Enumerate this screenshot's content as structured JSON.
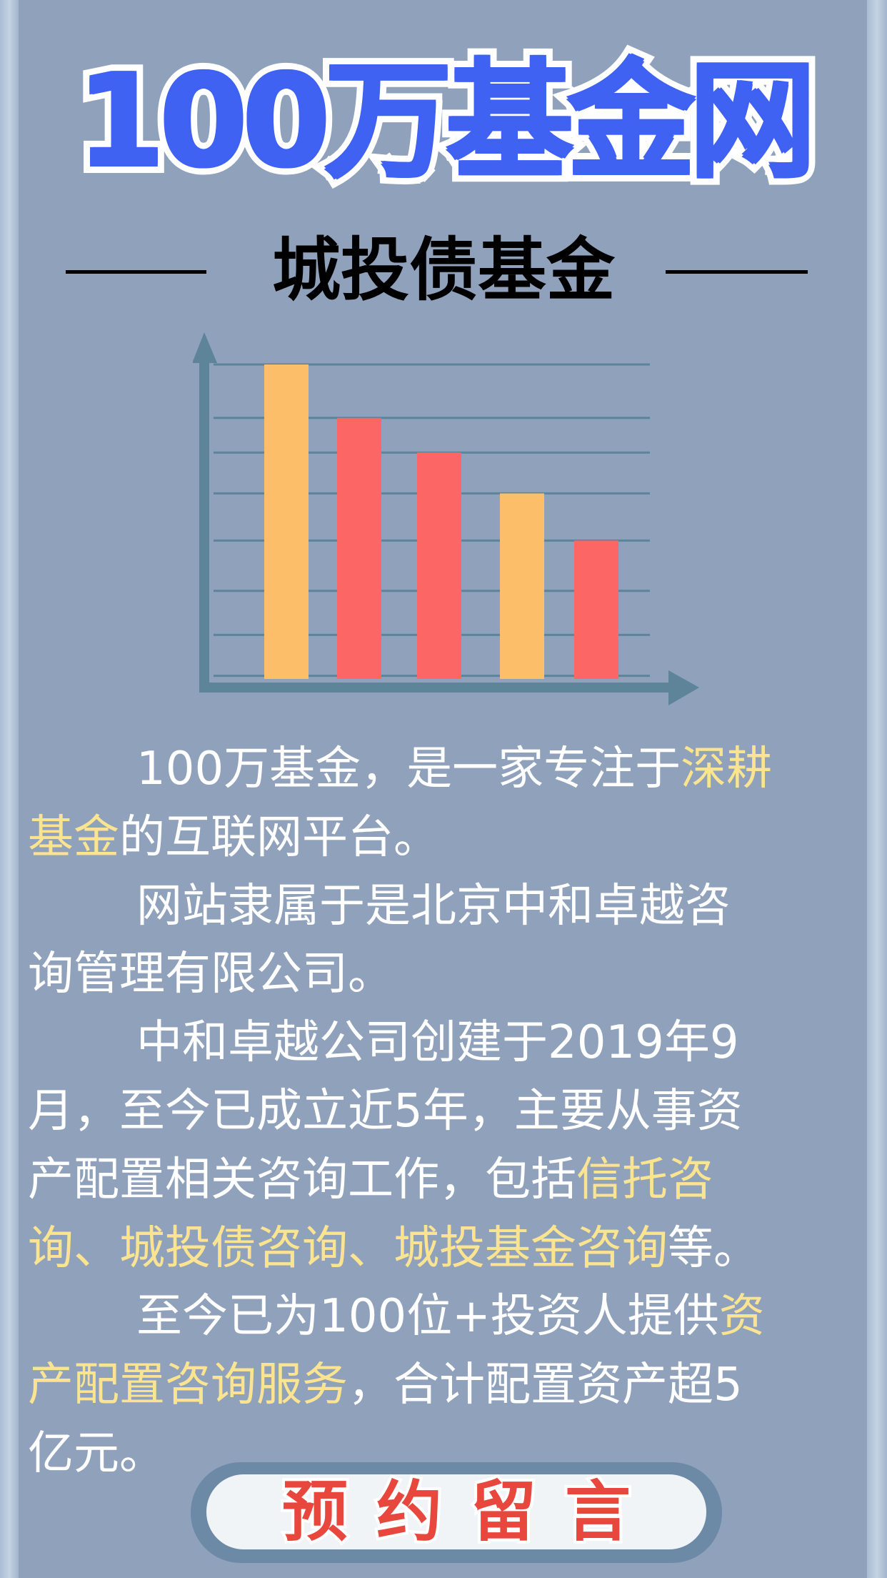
{
  "header": {
    "title": "100万基金网",
    "subtitle": "城投债基金"
  },
  "colors": {
    "background": "#8fa1bb",
    "title": "#3f62f3",
    "highlight": "#fbe491",
    "bar_orange": "#fcbe68",
    "bar_red": "#fc6766",
    "axis": "#5d8499",
    "button_text": "#e8473d"
  },
  "chart_data": {
    "type": "bar",
    "title": "",
    "xlabel": "",
    "ylabel": "",
    "categories": [
      "",
      "",
      "",
      "",
      ""
    ],
    "values": [
      100,
      83,
      72,
      59,
      44
    ],
    "colors": [
      "#fcbe68",
      "#fc6766",
      "#fc6766",
      "#fcbe68",
      "#fc6766"
    ],
    "gridlines": [
      100,
      83,
      72,
      59,
      44,
      28,
      14,
      1
    ],
    "ylim": [
      0,
      100
    ],
    "grid": true
  },
  "paragraphs": [
    {
      "lines": [
        [
          {
            "t": "100万基金，是一家专注于"
          },
          {
            "t": "深耕",
            "hl": true
          }
        ],
        [
          {
            "t": "基金",
            "hl": true
          },
          {
            "t": "的互联网平台。"
          }
        ]
      ]
    },
    {
      "lines": [
        [
          {
            "t": "网站隶属于是北京中和卓越咨"
          }
        ],
        [
          {
            "t": "询管理有限公司。"
          }
        ]
      ]
    },
    {
      "lines": [
        [
          {
            "t": "中和卓越公司创建于2019年9"
          }
        ],
        [
          {
            "t": "月，至今已成立近5年，主要从事资"
          }
        ],
        [
          {
            "t": "产配置相关咨询工作，包括"
          },
          {
            "t": "信托咨",
            "hl": true
          }
        ],
        [
          {
            "t": "询、城投债咨询、城投基金咨询",
            "hl": true
          },
          {
            "t": "等。"
          }
        ]
      ]
    },
    {
      "lines": [
        [
          {
            "t": "至今已为100位+投资人提供"
          },
          {
            "t": "资",
            "hl": true
          }
        ],
        [
          {
            "t": "产配置咨询服务",
            "hl": true
          },
          {
            "t": "，合计配置资产超5"
          }
        ],
        [
          {
            "t": "亿元。"
          }
        ]
      ]
    }
  ],
  "button": {
    "label": "预约留言"
  }
}
